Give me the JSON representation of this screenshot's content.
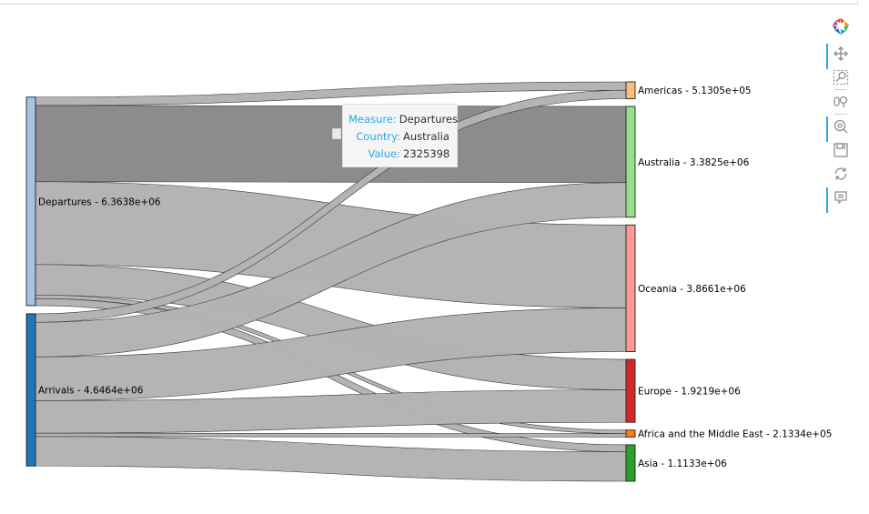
{
  "chart_data": {
    "type": "sankey",
    "title": "",
    "sources": [
      {
        "name": "Departures",
        "label": "Departures - 6.3638e+06",
        "value": 6363800,
        "color": "#a6c3e3"
      },
      {
        "name": "Arrivals",
        "label": "Arrivals - 4.6464e+06",
        "value": 4646400,
        "color": "#1f77b4"
      }
    ],
    "targets": [
      {
        "name": "Americas",
        "label": "Americas - 5.1305e+05",
        "value": 513050,
        "color": "#fdbd80"
      },
      {
        "name": "Australia",
        "label": "Australia - 3.3825e+06",
        "value": 3382500,
        "color": "#98df8a"
      },
      {
        "name": "Oceania",
        "label": "Oceania - 3.8661e+06",
        "value": 3866100,
        "color": "#ff9896"
      },
      {
        "name": "Europe",
        "label": "Europe - 1.9219e+06",
        "value": 1921900,
        "color": "#d62728"
      },
      {
        "name": "Africa and the Middle East",
        "label": "Africa and the Middle East - 2.1334e+05",
        "value": 213340,
        "color": "#ff7f0e"
      },
      {
        "name": "Asia",
        "label": "Asia - 1.1133e+06",
        "value": 1113300,
        "color": "#2ca02c"
      }
    ],
    "flows": [
      {
        "source": "Departures",
        "target": "Americas",
        "value": 254000
      },
      {
        "source": "Departures",
        "target": "Australia",
        "value": 2325398,
        "highlight": true
      },
      {
        "source": "Departures",
        "target": "Oceania",
        "value": 2530000
      },
      {
        "source": "Departures",
        "target": "Europe",
        "value": 930000
      },
      {
        "source": "Departures",
        "target": "Africa and the Middle East",
        "value": 110000
      },
      {
        "source": "Departures",
        "target": "Asia",
        "value": 214400
      },
      {
        "source": "Arrivals",
        "target": "Americas",
        "value": 259050
      },
      {
        "source": "Arrivals",
        "target": "Australia",
        "value": 1057102
      },
      {
        "source": "Arrivals",
        "target": "Oceania",
        "value": 1336100
      },
      {
        "source": "Arrivals",
        "target": "Europe",
        "value": 991900
      },
      {
        "source": "Arrivals",
        "target": "Africa and the Middle East",
        "value": 103340
      },
      {
        "source": "Arrivals",
        "target": "Asia",
        "value": 898900
      }
    ],
    "link_color": "#b3b3b3",
    "link_highlight_color": "#8c8c8c"
  },
  "tooltip": {
    "measure_key": "Measure:",
    "measure_value": "Departures",
    "country_key": "Country:",
    "country_value": "Australia",
    "value_key": "Value:",
    "value_value": "2325398"
  },
  "toolbar": {
    "logo": "bokeh-logo-icon",
    "tools": [
      "pan-icon",
      "box-zoom-icon",
      "wheel-zoom-icon",
      "tap-icon",
      "save-icon",
      "reset-icon",
      "hover-icon"
    ]
  }
}
